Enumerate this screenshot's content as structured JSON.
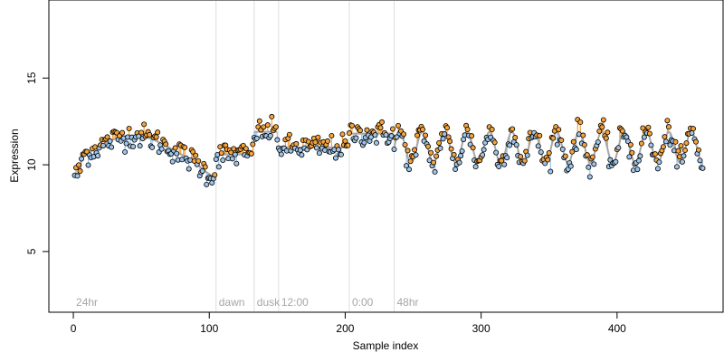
{
  "chart_data": {
    "type": "scatter",
    "title": "",
    "xlabel": "Sample index",
    "ylabel": "Expression",
    "xlim": [
      -18,
      478
    ],
    "ylim": [
      1.5,
      19.5
    ],
    "x_ticks": [
      0,
      100,
      200,
      300,
      400
    ],
    "y_ticks": [
      5,
      10,
      15
    ],
    "grid": false,
    "colors": {
      "trend": "#a6a6a6",
      "above_trend": "#f5a33a",
      "below_trend": "#9ec4e8",
      "boundary": "#dedede",
      "region_label": "#a6a6a6",
      "points": "#000000"
    },
    "regions": [
      {
        "label": "24hr",
        "start": 0,
        "end": 105
      },
      {
        "label": "dawn",
        "start": 105,
        "end": 133
      },
      {
        "label": "dusk",
        "start": 133,
        "end": 151
      },
      {
        "label": "12:00",
        "start": 151,
        "end": 203
      },
      {
        "label": "0:00",
        "start": 203,
        "end": 236
      },
      {
        "label": "48hr",
        "start": 236,
        "end": 463
      }
    ],
    "boundaries": [
      105,
      133,
      151,
      203,
      236
    ],
    "segments": [
      {
        "name": "24hr",
        "x_start": 1,
        "x_end": 104,
        "model": "bell",
        "base": 9.5,
        "peak": 11.7,
        "center": 44,
        "width": 30,
        "drop_after": 90,
        "drop_to": 9.3
      },
      {
        "name": "dawn",
        "x_start": 105,
        "x_end": 132,
        "model": "flat",
        "level": 10.6
      },
      {
        "name": "dusk",
        "x_start": 133,
        "x_end": 150,
        "model": "flat",
        "level": 11.9
      },
      {
        "name": "12:00",
        "x_start": 151,
        "x_end": 202,
        "model": "flat",
        "level": 11.0
      },
      {
        "name": "0:00",
        "x_start": 203,
        "x_end": 235,
        "model": "flat",
        "level": 11.8
      },
      {
        "name": "48hr",
        "x_start": 236,
        "x_end": 463,
        "model": "wave",
        "mean": 11.0,
        "amplitude": 0.9,
        "period": 16.5,
        "phase": 0
      }
    ],
    "point_count": 463,
    "noise_sd": 0.35
  }
}
